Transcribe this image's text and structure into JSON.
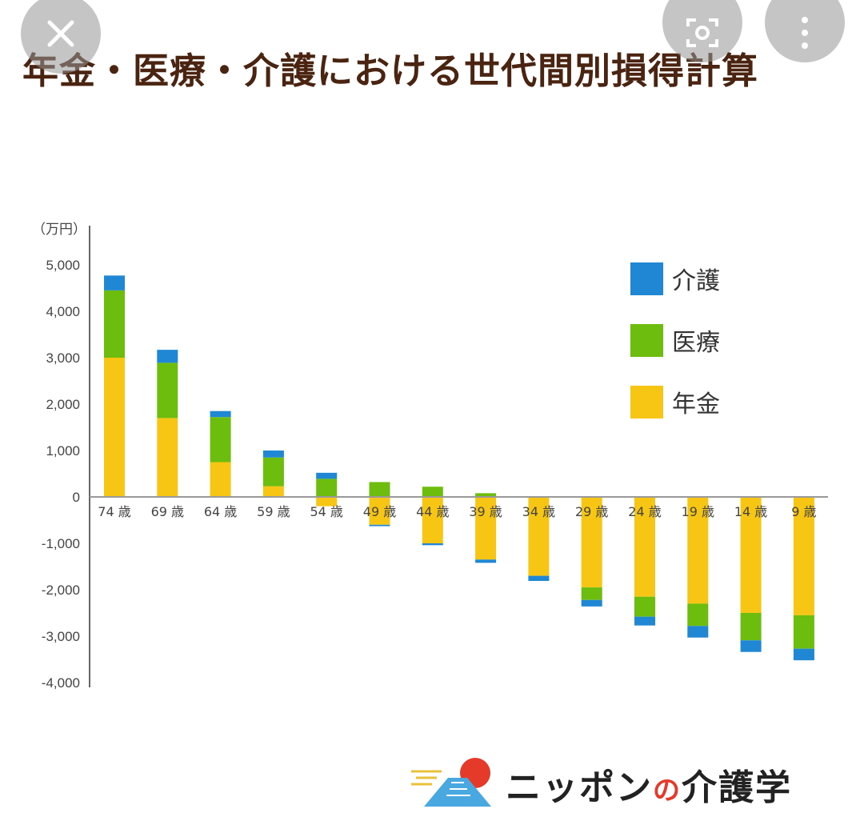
{
  "title": "年金・医療・介護における世代間別損得計算",
  "logo": {
    "part1": "ニッポン",
    "no": "の",
    "part2": "介護学"
  },
  "icons": {
    "close": "close-icon",
    "lens": "lens-icon",
    "more": "more-icon"
  },
  "chart_data": {
    "type": "bar",
    "stacked": true,
    "unit_label": "（万円）",
    "categories": [
      "74 歳",
      "69 歳",
      "64 歳",
      "59 歳",
      "54 歳",
      "49 歳",
      "44 歳",
      "39 歳",
      "34 歳",
      "29 歳",
      "24 歳",
      "19 歳",
      "14 歳",
      "9 歳"
    ],
    "series": [
      {
        "name": "年金",
        "color": "#f7c614",
        "values": [
          3000,
          1700,
          750,
          230,
          -200,
          -600,
          -1000,
          -1350,
          -1700,
          -1950,
          -2150,
          -2300,
          -2500,
          -2550
        ]
      },
      {
        "name": "医療",
        "color": "#6cbd0e",
        "values": [
          1450,
          1190,
          970,
          620,
          390,
          320,
          220,
          80,
          10,
          -270,
          -430,
          -480,
          -590,
          -720
        ]
      },
      {
        "name": "介護",
        "color": "#1f87d3",
        "values": [
          320,
          280,
          130,
          150,
          130,
          -30,
          -40,
          -70,
          -110,
          -140,
          -190,
          -250,
          -250,
          -250
        ]
      }
    ],
    "legend_order": [
      "介護",
      "医療",
      "年金"
    ],
    "ylim": [
      -4000,
      5000
    ],
    "yticks": [
      5000,
      4000,
      3000,
      2000,
      1000,
      0,
      -1000,
      -2000,
      -3000,
      -4000
    ],
    "ytick_labels": [
      "5,000",
      "4,000",
      "3,000",
      "2,000",
      "1,000",
      "0",
      "-1,000",
      "-2,000",
      "-3,000",
      "-4,000"
    ],
    "legend_position": "top-right",
    "grid": false
  }
}
